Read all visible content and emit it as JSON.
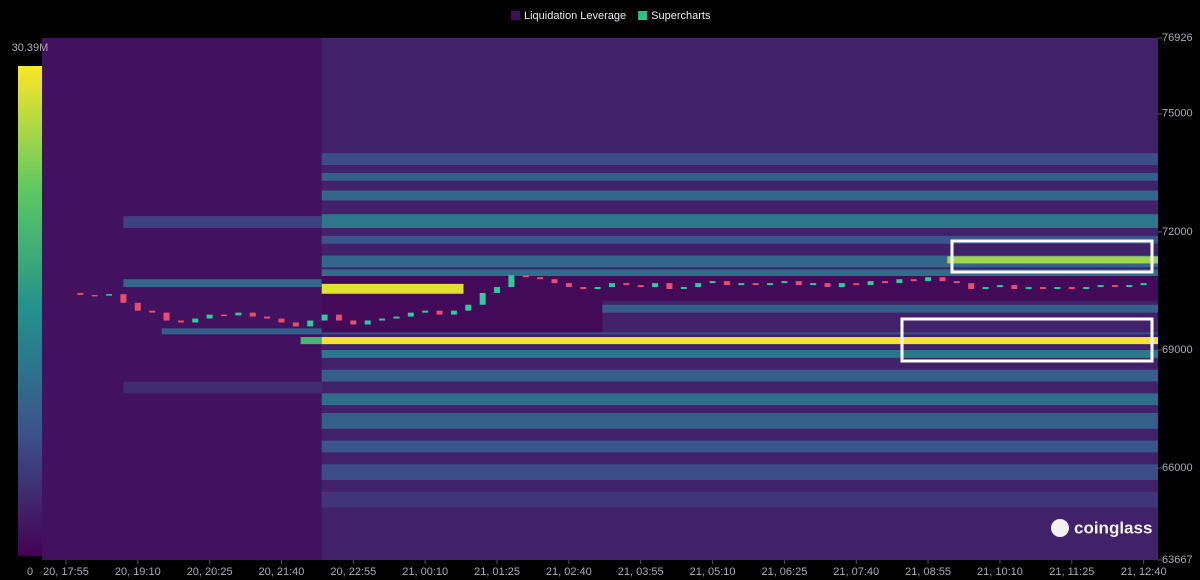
{
  "chart_data": {
    "type": "heatmap",
    "watermark": "coinglass",
    "ylim": [
      63667,
      76926
    ],
    "yticks": [
      63667,
      66000,
      69000,
      72000,
      75000,
      76926
    ],
    "xlim": [
      -25,
      1140
    ],
    "xticks": [
      {
        "value": 0,
        "label": "20, 17:55"
      },
      {
        "value": 75,
        "label": "20, 19:10"
      },
      {
        "value": 150,
        "label": "20, 20:25"
      },
      {
        "value": 225,
        "label": "20, 21:40"
      },
      {
        "value": 300,
        "label": "20, 22:55"
      },
      {
        "value": 375,
        "label": "21, 00:10"
      },
      {
        "value": 450,
        "label": "21, 01:25"
      },
      {
        "value": 525,
        "label": "21, 02:40"
      },
      {
        "value": 600,
        "label": "21, 03:55"
      },
      {
        "value": 675,
        "label": "21, 05:10"
      },
      {
        "value": 750,
        "label": "21, 06:25"
      },
      {
        "value": 825,
        "label": "21, 07:40"
      },
      {
        "value": 900,
        "label": "21, 08:55"
      },
      {
        "value": 975,
        "label": "21, 10:10"
      },
      {
        "value": 1050,
        "label": "21, 11:25"
      },
      {
        "value": 1125,
        "label": "21, 12:40"
      }
    ],
    "clim": [
      0,
      30.39
    ],
    "cticks": [
      {
        "value": 30.39,
        "label": "30.39M"
      },
      0
    ],
    "series": [
      {
        "name": "Liquidation Leverage",
        "color": "#3d1158",
        "type": "heatmap",
        "cells": [
          {
            "x": [
              -25,
              1140
            ],
            "y": [
              63667,
              76926
            ],
            "value": 1.5
          },
          {
            "x": [
              267,
              1140
            ],
            "y": [
              63667,
              76926
            ],
            "value": 3
          },
          {
            "x": [
              60,
              267
            ],
            "y": [
              72100,
              72400
            ],
            "value": 6
          },
          {
            "x": [
              60,
              267
            ],
            "y": [
              70600,
              70800
            ],
            "value": 10
          },
          {
            "x": [
              100,
              267
            ],
            "y": [
              69400,
              69550
            ],
            "value": 9
          },
          {
            "x": [
              60,
              267
            ],
            "y": [
              67900,
              68200
            ],
            "value": 4
          },
          {
            "x": [
              267,
              1140
            ],
            "y": [
              73700,
              74000
            ],
            "value": 7
          },
          {
            "x": [
              267,
              1140
            ],
            "y": [
              73300,
              73500
            ],
            "value": 9
          },
          {
            "x": [
              267,
              1140
            ],
            "y": [
              72800,
              73050
            ],
            "value": 10
          },
          {
            "x": [
              267,
              1140
            ],
            "y": [
              72100,
              72450
            ],
            "value": 12
          },
          {
            "x": [
              267,
              1140
            ],
            "y": [
              71700,
              71900
            ],
            "value": 8
          },
          {
            "x": [
              267,
              1140
            ],
            "y": [
              71100,
              71400
            ],
            "value": 10
          },
          {
            "x": [
              267,
              1140
            ],
            "y": [
              70880,
              71050
            ],
            "value": 11
          },
          {
            "x": [
              267,
              1140
            ],
            "y": [
              70250,
              70880
            ],
            "value": 0.8
          },
          {
            "x": [
              267,
              560
            ],
            "y": [
              69450,
              70880
            ],
            "value": 0.8
          },
          {
            "x": [
              920,
              1140
            ],
            "y": [
              71200,
              71380
            ],
            "value": 26
          },
          {
            "x": [
              267,
              415
            ],
            "y": [
              70430,
              70680
            ],
            "value": 29
          },
          {
            "x": [
              560,
              1140
            ],
            "y": [
              69950,
              70150
            ],
            "value": 9
          },
          {
            "x": [
              267,
              1140
            ],
            "y": [
              69400,
              69450
            ],
            "value": 7
          },
          {
            "x": [
              245,
              267
            ],
            "y": [
              69150,
              69330
            ],
            "value": 20
          },
          {
            "x": [
              267,
              1140
            ],
            "y": [
              69150,
              69330
            ],
            "value": 30
          },
          {
            "x": [
              267,
              1140
            ],
            "y": [
              68800,
              69000
            ],
            "value": 12
          },
          {
            "x": [
              267,
              1140
            ],
            "y": [
              68200,
              68500
            ],
            "value": 9
          },
          {
            "x": [
              267,
              1140
            ],
            "y": [
              67600,
              67900
            ],
            "value": 11
          },
          {
            "x": [
              267,
              1140
            ],
            "y": [
              67000,
              67400
            ],
            "value": 9
          },
          {
            "x": [
              267,
              1140
            ],
            "y": [
              66400,
              66700
            ],
            "value": 8
          },
          {
            "x": [
              267,
              1140
            ],
            "y": [
              65700,
              66100
            ],
            "value": 7
          },
          {
            "x": [
              267,
              1140
            ],
            "y": [
              65000,
              65400
            ],
            "value": 5
          }
        ]
      },
      {
        "name": "Supercharts",
        "color": "#1dc985",
        "type": "candlestick",
        "up_color": "#2ecc9a",
        "down_color": "#ea4d6c",
        "x": [
          0,
          15,
          30,
          45,
          60,
          75,
          90,
          105,
          120,
          135,
          150,
          165,
          180,
          195,
          210,
          225,
          240,
          255,
          270,
          285,
          300,
          315,
          330,
          345,
          360,
          375,
          390,
          405,
          420,
          435,
          450,
          465,
          480,
          495,
          510,
          525,
          540,
          555,
          570,
          585,
          600,
          615,
          630,
          645,
          660,
          675,
          690,
          705,
          720,
          735,
          750,
          765,
          780,
          795,
          810,
          825,
          840,
          855,
          870,
          885,
          900,
          915,
          930,
          945,
          960,
          975,
          990,
          1005,
          1020,
          1035,
          1050,
          1065,
          1080,
          1095,
          1110,
          1125
        ],
        "values": [
          70450,
          70400,
          70380,
          70420,
          70200,
          70000,
          69950,
          69750,
          69700,
          69800,
          69900,
          69880,
          69950,
          69850,
          69800,
          69700,
          69600,
          69750,
          69900,
          69750,
          69650,
          69750,
          69800,
          69850,
          69950,
          70000,
          69900,
          70000,
          70150,
          70450,
          70600,
          70900,
          70850,
          70800,
          70700,
          70600,
          70550,
          70600,
          70700,
          70650,
          70600,
          70700,
          70550,
          70600,
          70700,
          70750,
          70650,
          70700,
          70650,
          70700,
          70750,
          70650,
          70700,
          70600,
          70700,
          70650,
          70750,
          70700,
          70800,
          70750,
          70850,
          70750,
          70700,
          70550,
          70600,
          70650,
          70550,
          70600,
          70550,
          70600,
          70550,
          70600,
          70650,
          70600,
          70650,
          70700
        ]
      }
    ]
  }
}
